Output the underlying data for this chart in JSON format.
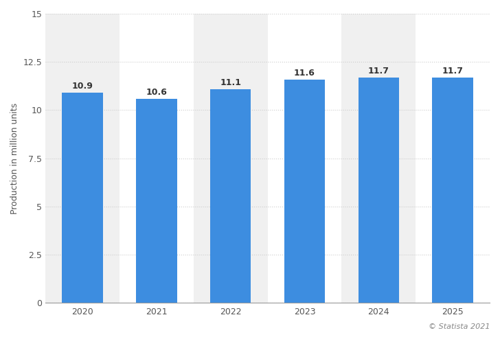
{
  "categories": [
    "2020",
    "2021",
    "2022",
    "2023",
    "2024",
    "2025"
  ],
  "values": [
    10.9,
    10.6,
    11.1,
    11.6,
    11.7,
    11.7
  ],
  "bar_color": "#3d8de0",
  "background_color": "#ffffff",
  "plot_bg_color": "#ffffff",
  "col_bg_even": "#f0f0f0",
  "col_bg_odd": "#ffffff",
  "ylabel": "Production in million units",
  "ylim": [
    0,
    15
  ],
  "yticks": [
    0,
    2.5,
    5,
    7.5,
    10,
    12.5,
    15
  ],
  "grid_color": "#cccccc",
  "label_fontsize": 9,
  "tick_fontsize": 9,
  "value_fontsize": 9,
  "copyright_text": "© Statista 2021",
  "bar_width": 0.55
}
